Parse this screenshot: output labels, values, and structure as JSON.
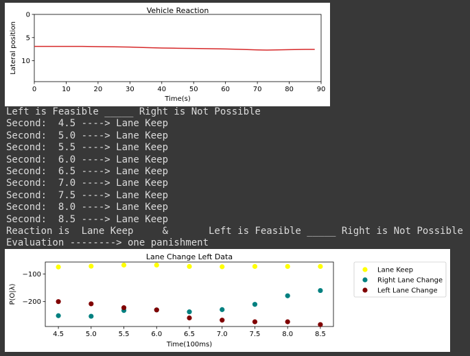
{
  "chart_top": {
    "type": "line",
    "title": "Vehicle Reaction",
    "xlabel": "Time(s)",
    "ylabel": "Lateral position",
    "xlim": [
      0,
      90
    ],
    "ylim": [
      14.5,
      0
    ],
    "xticks": [
      0,
      10,
      20,
      30,
      40,
      50,
      60,
      70,
      80,
      90
    ],
    "yticks": [
      0,
      5,
      10
    ],
    "series": [
      {
        "color": "#d62728",
        "x": [
          0,
          10,
          15,
          20,
          25,
          30,
          35,
          40,
          45,
          50,
          55,
          60,
          65,
          70,
          73,
          76,
          80,
          85,
          88
        ],
        "y": [
          6.9,
          6.9,
          6.9,
          6.95,
          7.0,
          7.05,
          7.15,
          7.25,
          7.3,
          7.35,
          7.4,
          7.45,
          7.55,
          7.65,
          7.7,
          7.65,
          7.6,
          7.55,
          7.55
        ]
      }
    ]
  },
  "console": {
    "lines": [
      "Left is Feasible _____ Right is Not Possible",
      "Second:  4.5 ----> Lane Keep",
      "Second:  5.0 ----> Lane Keep",
      "Second:  5.5 ----> Lane Keep",
      "Second:  6.0 ----> Lane Keep",
      "Second:  6.5 ----> Lane Keep",
      "Second:  7.0 ----> Lane Keep",
      "Second:  7.5 ----> Lane Keep",
      "Second:  8.0 ----> Lane Keep",
      "Second:  8.5 ----> Lane Keep",
      "Reaction is  Lane Keep     &       Left is Feasible _____ Right is Not Possible",
      "Evaluation --------> one panishment"
    ]
  },
  "chart_data": {
    "type": "scatter",
    "title": "Lane Change Left Data",
    "xlabel": "Time(100ms)",
    "ylabel": "P(O|λ)",
    "xlim": [
      4.3,
      8.7
    ],
    "ylim": [
      -290,
      -57
    ],
    "xticks": [
      4.5,
      5.0,
      5.5,
      6.0,
      6.5,
      7.0,
      7.5,
      8.0,
      8.5
    ],
    "yticks": [
      -100,
      -200
    ],
    "legend_position": "outside-top-right",
    "categories": [
      4.5,
      5.0,
      5.5,
      6.0,
      6.5,
      7.0,
      7.5,
      8.0,
      8.5
    ],
    "series": [
      {
        "name": "Lane Keep",
        "color": "#ffff00",
        "values": [
          -75,
          -72,
          -68,
          -68,
          -73,
          -74,
          -73,
          -73,
          -73
        ]
      },
      {
        "name": "Right Lane Change",
        "color": "#008080",
        "values": [
          -251,
          -253,
          -232,
          -230,
          -237,
          -229,
          -210,
          -179,
          -160
        ]
      },
      {
        "name": "Left Lane Change",
        "color": "#800000",
        "values": [
          -200,
          -208,
          -222,
          -230,
          -259,
          -267,
          -273,
          -273,
          -283
        ]
      }
    ]
  }
}
